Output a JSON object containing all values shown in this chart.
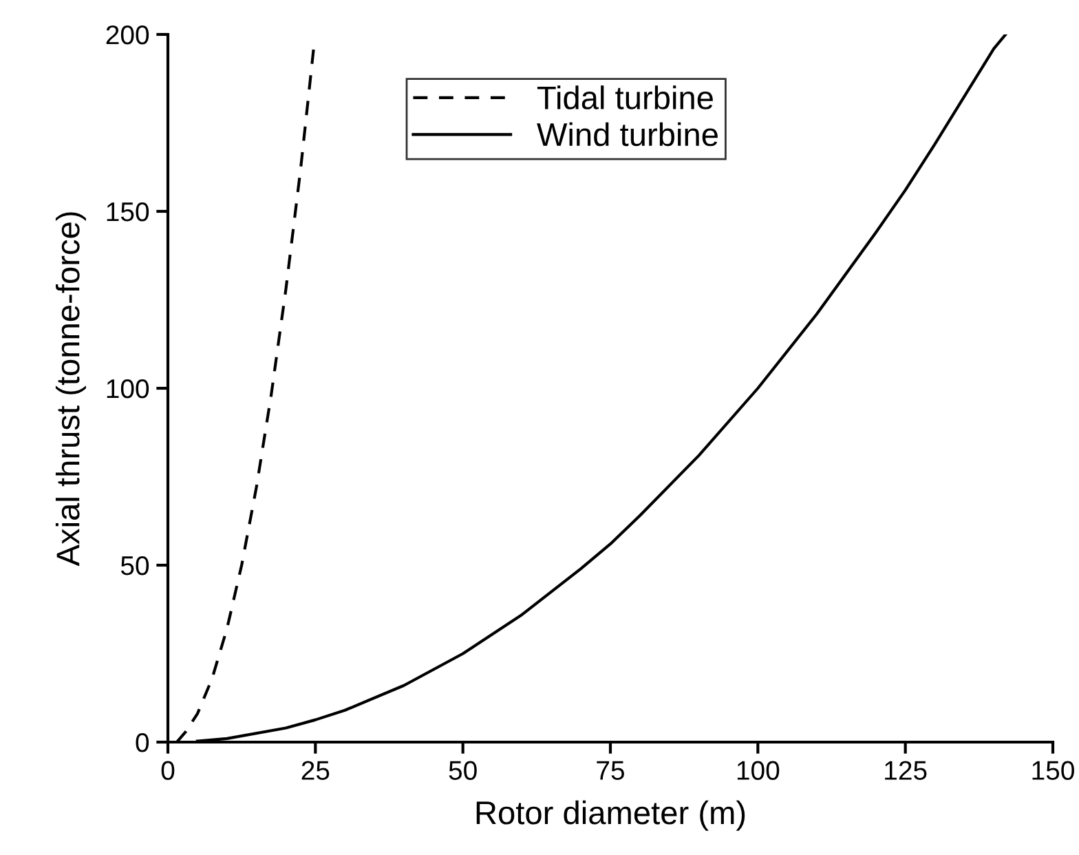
{
  "chart_data": {
    "type": "line",
    "xlabel": "Rotor diameter (m)",
    "ylabel": "Axial thrust (tonne-force)",
    "xlim": [
      0,
      150
    ],
    "xticks": [
      0,
      25,
      50,
      75,
      100,
      125,
      150
    ],
    "ylim": [
      0,
      200
    ],
    "yticks": [
      0,
      50,
      100,
      150,
      200
    ],
    "grid": false,
    "legend": "top",
    "marker": "none",
    "series": [
      {
        "name": "Tidal turbine",
        "color": "#000000",
        "line_style": "dashed",
        "x": [
          1.5,
          3,
          5,
          7.5,
          10,
          12.5,
          15,
          17.5,
          20,
          22.5,
          24.7
        ],
        "values": [
          0,
          2.9,
          8,
          18,
          32,
          50,
          72,
          98,
          128,
          162,
          196
        ]
      },
      {
        "name": "Wind turbine",
        "color": "#000000",
        "line_style": "solid",
        "x": [
          5,
          10,
          20,
          25,
          30,
          40,
          50,
          60,
          70,
          75,
          80,
          90,
          100,
          110,
          120,
          125,
          130,
          140,
          142
        ],
        "values": [
          0.3,
          1,
          4,
          6.3,
          9,
          16,
          25,
          36,
          49,
          56,
          64,
          81,
          100,
          121,
          144,
          156,
          169,
          196,
          200
        ]
      }
    ]
  }
}
